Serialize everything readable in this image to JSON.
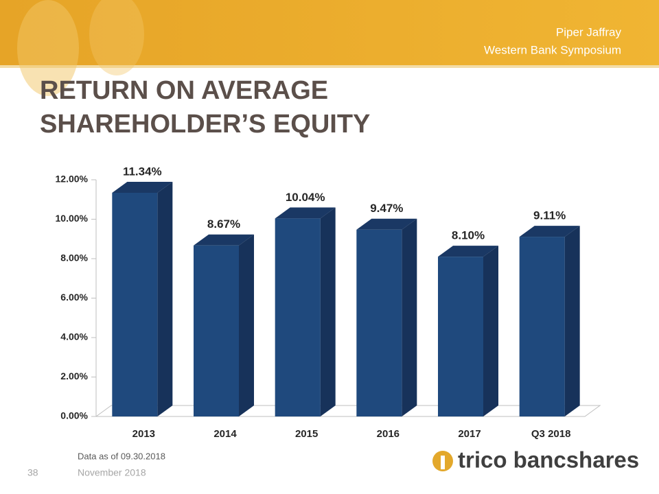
{
  "header": {
    "lines": [
      "Piper Jaffray",
      "Western Bank Symposium"
    ]
  },
  "chart_data": {
    "type": "bar3d",
    "title": [
      "RETURN ON AVERAGE",
      "SHAREHOLDER’S EQUITY"
    ],
    "categories": [
      "2013",
      "2014",
      "2015",
      "2016",
      "2017",
      "Q3 2018"
    ],
    "values": [
      11.34,
      8.67,
      10.04,
      9.47,
      8.1,
      9.11
    ],
    "value_labels": [
      "11.34%",
      "8.67%",
      "10.04%",
      "9.47%",
      "8.10%",
      "9.11%"
    ],
    "color": "#1f497d",
    "ylim": [
      0,
      12
    ],
    "yticks": [
      {
        "value": 0,
        "label": "0.00%"
      },
      {
        "value": 2,
        "label": "2.00%"
      },
      {
        "value": 4,
        "label": "4.00%"
      },
      {
        "value": 6,
        "label": "6.00%"
      },
      {
        "value": 8,
        "label": "8.00%"
      },
      {
        "value": 10,
        "label": "10.00%"
      },
      {
        "value": 12,
        "label": "12.00%"
      }
    ]
  },
  "footer": {
    "note": "Data as of 09.30.2018",
    "page": "38",
    "date": "November 2018",
    "logo": "trico bancshares"
  }
}
